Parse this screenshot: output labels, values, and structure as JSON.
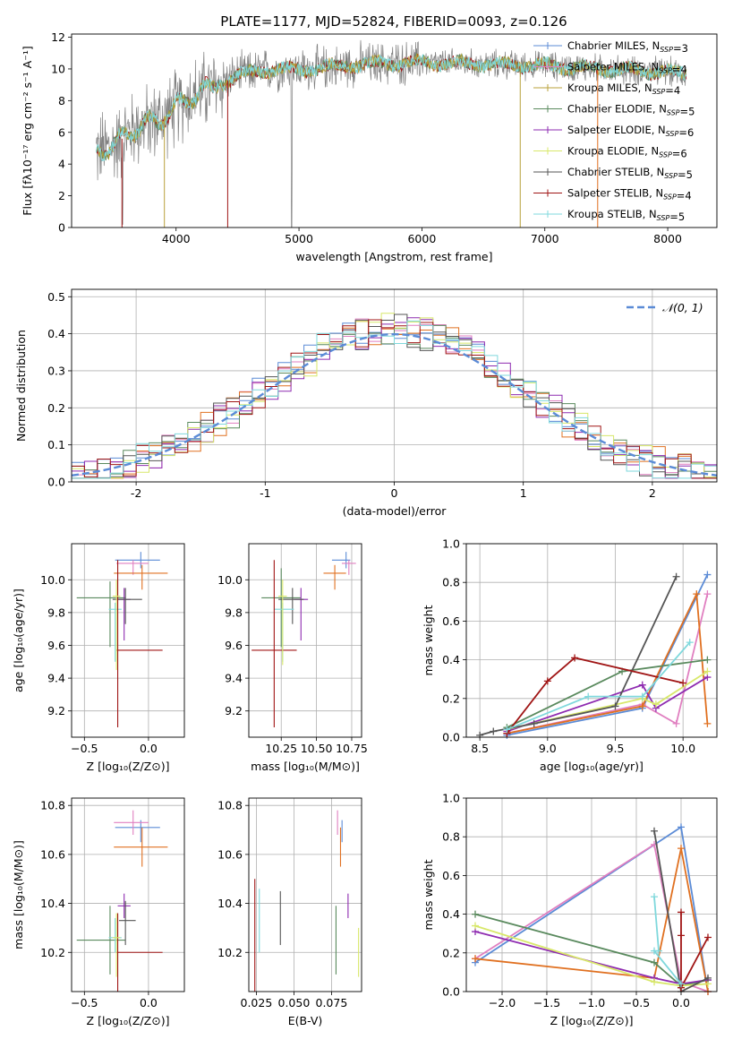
{
  "figure_title": "PLATE=1177, MJD=52824, FIBERID=0093, z=0.126",
  "colors": {
    "Chabrier MILES": "#5b8bd6",
    "Salpeter MILES": "#e07fc0",
    "Kroupa MILES": "#b8a13a",
    "Chabrier ELODIE": "#5a8a5e",
    "Salpeter ELODIE": "#8e2bb0",
    "Kroupa ELODIE": "#d8e86a",
    "Chabrier STELIB": "#555555",
    "Salpeter STELIB": "#a01515",
    "Kroupa STELIB": "#7fd8dc",
    "Orange": "#e07020",
    "Data": "#808080"
  },
  "chart_data": [
    {
      "id": "spectrum",
      "type": "line",
      "xlabel": "wavelength [Angstrom, rest frame]",
      "ylabel": "Flux [fλ10⁻¹⁷ erg cm⁻² s⁻¹ A⁻¹]",
      "xlim": [
        3150,
        8400
      ],
      "ylim": [
        0,
        12.2
      ],
      "xticks": [
        4000,
        5000,
        6000,
        7000,
        8000
      ],
      "yticks": [
        0,
        2,
        4,
        6,
        8,
        10,
        12
      ],
      "legend_position": "right",
      "legend": [
        {
          "name": "Chabrier MILES",
          "label": "Chabrier MILES, N_SSP=3"
        },
        {
          "name": "Salpeter MILES",
          "label": "Salpeter MILES, N_SSP=4"
        },
        {
          "name": "Kroupa MILES",
          "label": "Kroupa MILES, N_SSP=4"
        },
        {
          "name": "Chabrier ELODIE",
          "label": "Chabrier ELODIE, N_SSP=5"
        },
        {
          "name": "Salpeter ELODIE",
          "label": "Salpeter ELODIE, N_SSP=6"
        },
        {
          "name": "Kroupa ELODIE",
          "label": "Kroupa ELODIE, N_SSP=6"
        },
        {
          "name": "Chabrier STELIB",
          "label": "Chabrier STELIB, N_SSP=5"
        },
        {
          "name": "Salpeter STELIB",
          "label": "Salpeter STELIB, N_SSP=4"
        },
        {
          "name": "Kroupa STELIB",
          "label": "Kroupa STELIB, N_SSP=5"
        }
      ],
      "model_anchor": {
        "x": [
          3350,
          3500,
          3650,
          3800,
          3950,
          4100,
          4300,
          4500,
          4800,
          5000,
          5200,
          5500,
          6000,
          6500,
          7000,
          7500,
          8000,
          8150
        ],
        "y": [
          4.8,
          5.2,
          6.2,
          6.6,
          7.2,
          8.2,
          8.8,
          9.6,
          10.0,
          9.9,
          10.1,
          10.3,
          10.4,
          10.3,
          10.2,
          10.0,
          9.8,
          9.7
        ]
      },
      "data_range": [
        3350,
        8150
      ]
    },
    {
      "id": "residuals",
      "type": "histogram",
      "xlabel": "(data-model)/error",
      "ylabel": "Normed distribution",
      "xlim": [
        -2.5,
        2.5
      ],
      "ylim": [
        0,
        0.52
      ],
      "xticks": [
        -2,
        -1,
        0,
        1,
        2
      ],
      "yticks": [
        0.0,
        0.1,
        0.2,
        0.3,
        0.4,
        0.5
      ],
      "bin_width": 0.1,
      "reference_curve": {
        "name": "N(0,1)",
        "label": "𝒩(0, 1)"
      },
      "legend_position": "top-right"
    },
    {
      "id": "age_vs_Z",
      "type": "errorbar",
      "xlabel": "Z [log₁₀(Z/Z⊙)]",
      "ylabel": "age  [log₁₀(age/yr)]",
      "xlim": [
        -0.6,
        0.28
      ],
      "ylim": [
        9.04,
        10.22
      ],
      "xticks": [
        -0.5,
        0.0
      ],
      "xticklabels": [
        "−0.5",
        "0.0"
      ],
      "yticks": [
        9.2,
        9.4,
        9.6,
        9.8,
        10.0
      ],
      "points": [
        {
          "series": "Chabrier MILES",
          "x": -0.06,
          "y": 10.12,
          "xerr": [
            0.2,
            0.15
          ],
          "yerr": [
            0.05,
            0.05
          ]
        },
        {
          "series": "Salpeter MILES",
          "x": -0.12,
          "y": 10.1,
          "xerr": [
            0.13,
            0.12
          ],
          "yerr": [
            0.07,
            0.02
          ]
        },
        {
          "series": "Orange",
          "x": -0.05,
          "y": 10.04,
          "xerr": [
            0.22,
            0.2
          ],
          "yerr": [
            0.1,
            0.05
          ]
        },
        {
          "series": "Chabrier ELODIE",
          "x": -0.3,
          "y": 9.89,
          "xerr": [
            0.26,
            0.12
          ],
          "yerr": [
            0.3,
            0.1
          ]
        },
        {
          "series": "Salpeter ELODIE",
          "x": -0.19,
          "y": 9.88,
          "xerr": [
            0.05,
            0.05
          ],
          "yerr": [
            0.25,
            0.07
          ]
        },
        {
          "series": "Chabrier STELIB",
          "x": -0.18,
          "y": 9.88,
          "xerr": [
            0.1,
            0.13
          ],
          "yerr": [
            0.15,
            0.07
          ]
        },
        {
          "series": "Kroupa STELIB",
          "x": -0.26,
          "y": 9.82,
          "xerr": [
            0.05,
            0.05
          ],
          "yerr": [
            0.32,
            0.04
          ]
        },
        {
          "series": "Salpeter STELIB",
          "x": -0.24,
          "y": 9.57,
          "xerr": [
            0.01,
            0.35
          ],
          "yerr": [
            0.47,
            0.55
          ]
        },
        {
          "series": "Kroupa ELODIE",
          "x": -0.25,
          "y": 9.9,
          "xerr": [
            0.03,
            0.03
          ],
          "yerr": [
            0.45,
            0.1
          ]
        }
      ]
    },
    {
      "id": "age_vs_mass",
      "type": "errorbar",
      "xlabel": "mass [log₁₀(M/M⊙)]",
      "ylabel": "",
      "xlim": [
        10.02,
        10.82
      ],
      "ylim": [
        9.04,
        10.22
      ],
      "xticks": [
        10.25,
        10.5,
        10.75
      ],
      "xticklabels": [
        "10.25",
        "10.50",
        "10.75"
      ],
      "yticks": [
        9.2,
        9.4,
        9.6,
        9.8,
        10.0
      ],
      "points": [
        {
          "series": "Chabrier MILES",
          "x": 10.71,
          "y": 10.12,
          "xerr": [
            0.1,
            0.03
          ],
          "yerr": [
            0.05,
            0.05
          ]
        },
        {
          "series": "Salpeter MILES",
          "x": 10.73,
          "y": 10.1,
          "xerr": [
            0.05,
            0.05
          ],
          "yerr": [
            0.07,
            0.02
          ]
        },
        {
          "series": "Orange",
          "x": 10.63,
          "y": 10.04,
          "xerr": [
            0.08,
            0.08
          ],
          "yerr": [
            0.1,
            0.05
          ]
        },
        {
          "series": "Chabrier ELODIE",
          "x": 10.25,
          "y": 9.89,
          "xerr": [
            0.14,
            0.14
          ],
          "yerr": [
            0.3,
            0.18
          ]
        },
        {
          "series": "Salpeter ELODIE",
          "x": 10.39,
          "y": 9.88,
          "xerr": [
            0.05,
            0.05
          ],
          "yerr": [
            0.25,
            0.07
          ]
        },
        {
          "series": "Chabrier STELIB",
          "x": 10.33,
          "y": 9.88,
          "xerr": [
            0.1,
            0.08
          ],
          "yerr": [
            0.15,
            0.07
          ]
        },
        {
          "series": "Kroupa STELIB",
          "x": 10.26,
          "y": 9.82,
          "xerr": [
            0.06,
            0.08
          ],
          "yerr": [
            0.32,
            0.04
          ]
        },
        {
          "series": "Salpeter STELIB",
          "x": 10.2,
          "y": 9.57,
          "xerr": [
            0.16,
            0.16
          ],
          "yerr": [
            0.47,
            0.55
          ]
        },
        {
          "series": "Kroupa ELODIE",
          "x": 10.26,
          "y": 9.9,
          "xerr": [
            0.03,
            0.03
          ],
          "yerr": [
            0.42,
            0.1
          ]
        }
      ]
    },
    {
      "id": "weight_vs_age",
      "type": "line",
      "xlabel": "age  [log₁₀(age/yr)]",
      "ylabel": "mass weight",
      "xlim": [
        8.4,
        10.25
      ],
      "ylim": [
        0,
        1.0
      ],
      "xticks": [
        8.5,
        9.0,
        9.5,
        10.0
      ],
      "xticklabels": [
        "8.5",
        "9.0",
        "9.5",
        "10.0"
      ],
      "yticks": [
        0.0,
        0.2,
        0.4,
        0.6,
        0.8,
        1.0
      ],
      "series": [
        {
          "name": "Chabrier MILES",
          "x": [
            8.7,
            9.7,
            10.18
          ],
          "y": [
            0.01,
            0.15,
            0.84
          ]
        },
        {
          "name": "Salpeter MILES",
          "x": [
            8.7,
            9.7,
            9.95,
            10.18
          ],
          "y": [
            0.02,
            0.17,
            0.07,
            0.74
          ]
        },
        {
          "name": "Orange",
          "x": [
            8.7,
            9.7,
            10.1,
            10.18
          ],
          "y": [
            0.02,
            0.16,
            0.74,
            0.07
          ]
        },
        {
          "name": "Chabrier ELODIE",
          "x": [
            8.7,
            9.55,
            10.18
          ],
          "y": [
            0.05,
            0.34,
            0.4
          ]
        },
        {
          "name": "Salpeter ELODIE",
          "x": [
            8.7,
            9.7,
            9.8,
            10.18
          ],
          "y": [
            0.03,
            0.27,
            0.15,
            0.31
          ]
        },
        {
          "name": "Kroupa ELODIE",
          "x": [
            8.7,
            9.7,
            9.8,
            10.18
          ],
          "y": [
            0.04,
            0.2,
            0.17,
            0.34
          ]
        },
        {
          "name": "Chabrier STELIB",
          "x": [
            8.5,
            8.6,
            8.9,
            9.5,
            9.95
          ],
          "y": [
            0.01,
            0.03,
            0.07,
            0.16,
            0.83
          ]
        },
        {
          "name": "Salpeter STELIB",
          "x": [
            8.7,
            9.0,
            9.2,
            10.0
          ],
          "y": [
            0.02,
            0.29,
            0.41,
            0.28
          ]
        },
        {
          "name": "Kroupa STELIB",
          "x": [
            8.7,
            9.3,
            9.7,
            10.05
          ],
          "y": [
            0.04,
            0.21,
            0.21,
            0.49
          ]
        }
      ]
    },
    {
      "id": "mass_vs_Z",
      "type": "errorbar",
      "xlabel": "Z [log₁₀(Z/Z⊙)]",
      "ylabel": "mass [log₁₀(M/M⊙)]",
      "xlim": [
        -0.6,
        0.28
      ],
      "ylim": [
        10.04,
        10.83
      ],
      "xticks": [
        -0.5,
        0.0
      ],
      "xticklabels": [
        "−0.5",
        "0.0"
      ],
      "yticks": [
        10.2,
        10.4,
        10.6,
        10.8
      ],
      "points": [
        {
          "series": "Chabrier MILES",
          "x": -0.06,
          "y": 10.71,
          "xerr": [
            0.2,
            0.15
          ],
          "yerr": [
            0.06,
            0.03
          ]
        },
        {
          "series": "Salpeter MILES",
          "x": -0.12,
          "y": 10.73,
          "xerr": [
            0.15,
            0.12
          ],
          "yerr": [
            0.05,
            0.05
          ]
        },
        {
          "series": "Orange",
          "x": -0.05,
          "y": 10.63,
          "xerr": [
            0.22,
            0.2
          ],
          "yerr": [
            0.08,
            0.08
          ]
        },
        {
          "series": "Chabrier ELODIE",
          "x": -0.3,
          "y": 10.25,
          "xerr": [
            0.26,
            0.12
          ],
          "yerr": [
            0.14,
            0.14
          ]
        },
        {
          "series": "Salpeter ELODIE",
          "x": -0.19,
          "y": 10.39,
          "xerr": [
            0.05,
            0.05
          ],
          "yerr": [
            0.05,
            0.05
          ]
        },
        {
          "series": "Chabrier STELIB",
          "x": -0.18,
          "y": 10.33,
          "xerr": [
            0.05,
            0.08
          ],
          "yerr": [
            0.1,
            0.08
          ]
        },
        {
          "series": "Kroupa STELIB",
          "x": -0.26,
          "y": 10.26,
          "xerr": [
            0.05,
            0.05
          ],
          "yerr": [
            0.06,
            0.08
          ]
        },
        {
          "series": "Salpeter STELIB",
          "x": -0.24,
          "y": 10.2,
          "xerr": [
            0.01,
            0.35
          ],
          "yerr": [
            0.16,
            0.16
          ]
        },
        {
          "series": "Kroupa ELODIE",
          "x": -0.25,
          "y": 10.26,
          "xerr": [
            0.03,
            0.03
          ],
          "yerr": [
            0.16,
            0.1
          ]
        }
      ]
    },
    {
      "id": "mass_vs_EBV",
      "type": "errorbar",
      "xlabel": "E(B-V)",
      "ylabel": "",
      "xlim": [
        0.02,
        0.095
      ],
      "ylim": [
        10.04,
        10.83
      ],
      "xticks": [
        0.025,
        0.05,
        0.075
      ],
      "xticklabels": [
        "0.025",
        "0.050",
        "0.075"
      ],
      "yticks": [
        10.2,
        10.4,
        10.6,
        10.8
      ],
      "points": [
        {
          "series": "Chabrier MILES",
          "x": 0.082,
          "y": 10.71,
          "xerr": [
            0,
            0
          ],
          "yerr": [
            0.06,
            0.03
          ]
        },
        {
          "series": "Salpeter MILES",
          "x": 0.079,
          "y": 10.73,
          "xerr": [
            0,
            0
          ],
          "yerr": [
            0.05,
            0.05
          ]
        },
        {
          "series": "Orange",
          "x": 0.081,
          "y": 10.63,
          "xerr": [
            0,
            0
          ],
          "yerr": [
            0.08,
            0.08
          ]
        },
        {
          "series": "Chabrier ELODIE",
          "x": 0.078,
          "y": 10.25,
          "xerr": [
            0,
            0
          ],
          "yerr": [
            0.14,
            0.14
          ]
        },
        {
          "series": "Salpeter ELODIE",
          "x": 0.086,
          "y": 10.39,
          "xerr": [
            0,
            0
          ],
          "yerr": [
            0.05,
            0.05
          ]
        },
        {
          "series": "Chabrier STELIB",
          "x": 0.041,
          "y": 10.33,
          "xerr": [
            0,
            0
          ],
          "yerr": [
            0.1,
            0.12
          ]
        },
        {
          "series": "Kroupa STELIB",
          "x": 0.027,
          "y": 10.26,
          "xerr": [
            0,
            0
          ],
          "yerr": [
            0.06,
            0.2
          ]
        },
        {
          "series": "Salpeter STELIB",
          "x": 0.024,
          "y": 10.2,
          "xerr": [
            0,
            0
          ],
          "yerr": [
            0.16,
            0.3
          ]
        },
        {
          "series": "Kroupa ELODIE",
          "x": 0.093,
          "y": 10.2,
          "xerr": [
            0,
            0
          ],
          "yerr": [
            0.1,
            0.1
          ]
        }
      ]
    },
    {
      "id": "weight_vs_Z",
      "type": "line",
      "xlabel": "Z [log₁₀(Z/Z⊙)]",
      "ylabel": "mass weight",
      "xlim": [
        -2.4,
        0.4
      ],
      "ylim": [
        0,
        1.0
      ],
      "xticks": [
        -2.0,
        -1.5,
        -1.0,
        -0.5,
        0.0
      ],
      "xticklabels": [
        "−2.0",
        "−1.5",
        "−1.0",
        "−0.5",
        "0.0"
      ],
      "yticks": [
        0.0,
        0.2,
        0.4,
        0.6,
        0.8,
        1.0
      ],
      "series": [
        {
          "name": "Chabrier MILES",
          "x": [
            -2.3,
            0.0,
            0.3
          ],
          "y": [
            0.15,
            0.85,
            0.0
          ]
        },
        {
          "name": "Salpeter MILES",
          "x": [
            -2.3,
            -0.3,
            0.0,
            0.3
          ],
          "y": [
            0.17,
            0.76,
            0.05,
            0.0
          ]
        },
        {
          "name": "Orange",
          "x": [
            -2.3,
            -0.3,
            0.0,
            0.3
          ],
          "y": [
            0.17,
            0.07,
            0.74,
            0.0
          ]
        },
        {
          "name": "Chabrier ELODIE",
          "x": [
            -2.3,
            -0.3,
            0.0,
            0.3
          ],
          "y": [
            0.4,
            0.15,
            0.03,
            0.06
          ]
        },
        {
          "name": "Salpeter ELODIE",
          "x": [
            -2.3,
            -0.3,
            0.0,
            0.3
          ],
          "y": [
            0.31,
            0.07,
            0.04,
            0.06
          ]
        },
        {
          "name": "Kroupa ELODIE",
          "x": [
            -2.3,
            -0.3,
            0.0,
            0.3
          ],
          "y": [
            0.34,
            0.05,
            0.03,
            0.04
          ]
        },
        {
          "name": "Chabrier STELIB",
          "x": [
            -0.3,
            0.0,
            0.3
          ],
          "y": [
            0.83,
            0.0,
            0.07
          ]
        },
        {
          "name": "Salpeter STELIB",
          "x": [
            0.0,
            0.0,
            0.0,
            0.3
          ],
          "y": [
            0.41,
            0.29,
            0.02,
            0.28
          ]
        },
        {
          "name": "Kroupa STELIB",
          "x": [
            -0.3,
            -0.25,
            -0.3,
            0.0
          ],
          "y": [
            0.49,
            0.21,
            0.21,
            0.04
          ]
        }
      ]
    }
  ]
}
